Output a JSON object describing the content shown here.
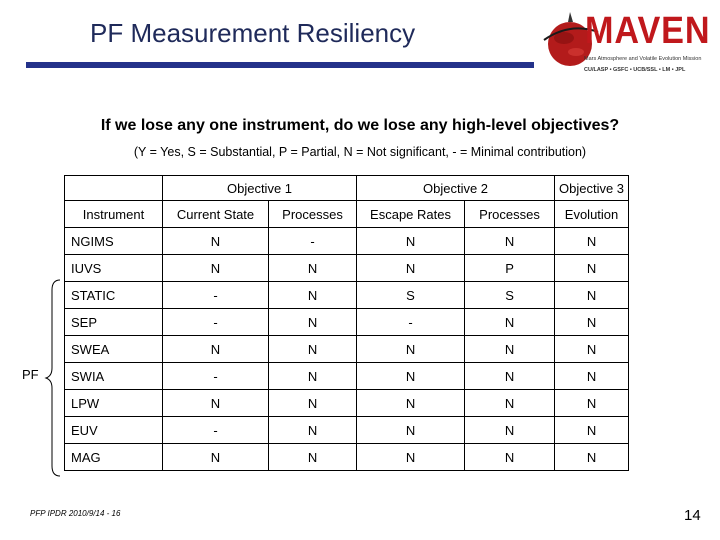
{
  "title": "PF Measurement Resiliency",
  "logo": {
    "name": "MAVEN",
    "tagline": "Mars Atmosphere and Volatile Evolution Mission",
    "partners": "CU/LASP • GSFC • UCB/SSL • LM • JPL",
    "colors": {
      "brand": "#c0181c",
      "accent": "#24328a"
    }
  },
  "question": "If we lose any one instrument, do we lose any high-level objectives?",
  "legend": "(Y = Yes, S = Substantial, P = Partial, N = Not significant, - = Minimal contribution)",
  "table": {
    "group_headers": [
      "Objective 1",
      "Objective 2",
      "Objective 3"
    ],
    "column_headers": [
      "Instrument",
      "Current State",
      "Processes",
      "Escape Rates",
      "Processes",
      "Evolution"
    ],
    "rows": [
      [
        "NGIMS",
        "N",
        "-",
        "N",
        "N",
        "N"
      ],
      [
        "IUVS",
        "N",
        "N",
        "N",
        "P",
        "N"
      ],
      [
        "STATIC",
        "-",
        "N",
        "S",
        "S",
        "N"
      ],
      [
        "SEP",
        "-",
        "N",
        "-",
        "N",
        "N"
      ],
      [
        "SWEA",
        "N",
        "N",
        "N",
        "N",
        "N"
      ],
      [
        "SWIA",
        "-",
        "N",
        "N",
        "N",
        "N"
      ],
      [
        "LPW",
        "N",
        "N",
        "N",
        "N",
        "N"
      ],
      [
        "EUV",
        "-",
        "N",
        "N",
        "N",
        "N"
      ],
      [
        "MAG",
        "N",
        "N",
        "N",
        "N",
        "N"
      ]
    ]
  },
  "pf_label": "PF",
  "footer": "PFP IPDR 2010/9/14 - 16",
  "page_number": "14"
}
